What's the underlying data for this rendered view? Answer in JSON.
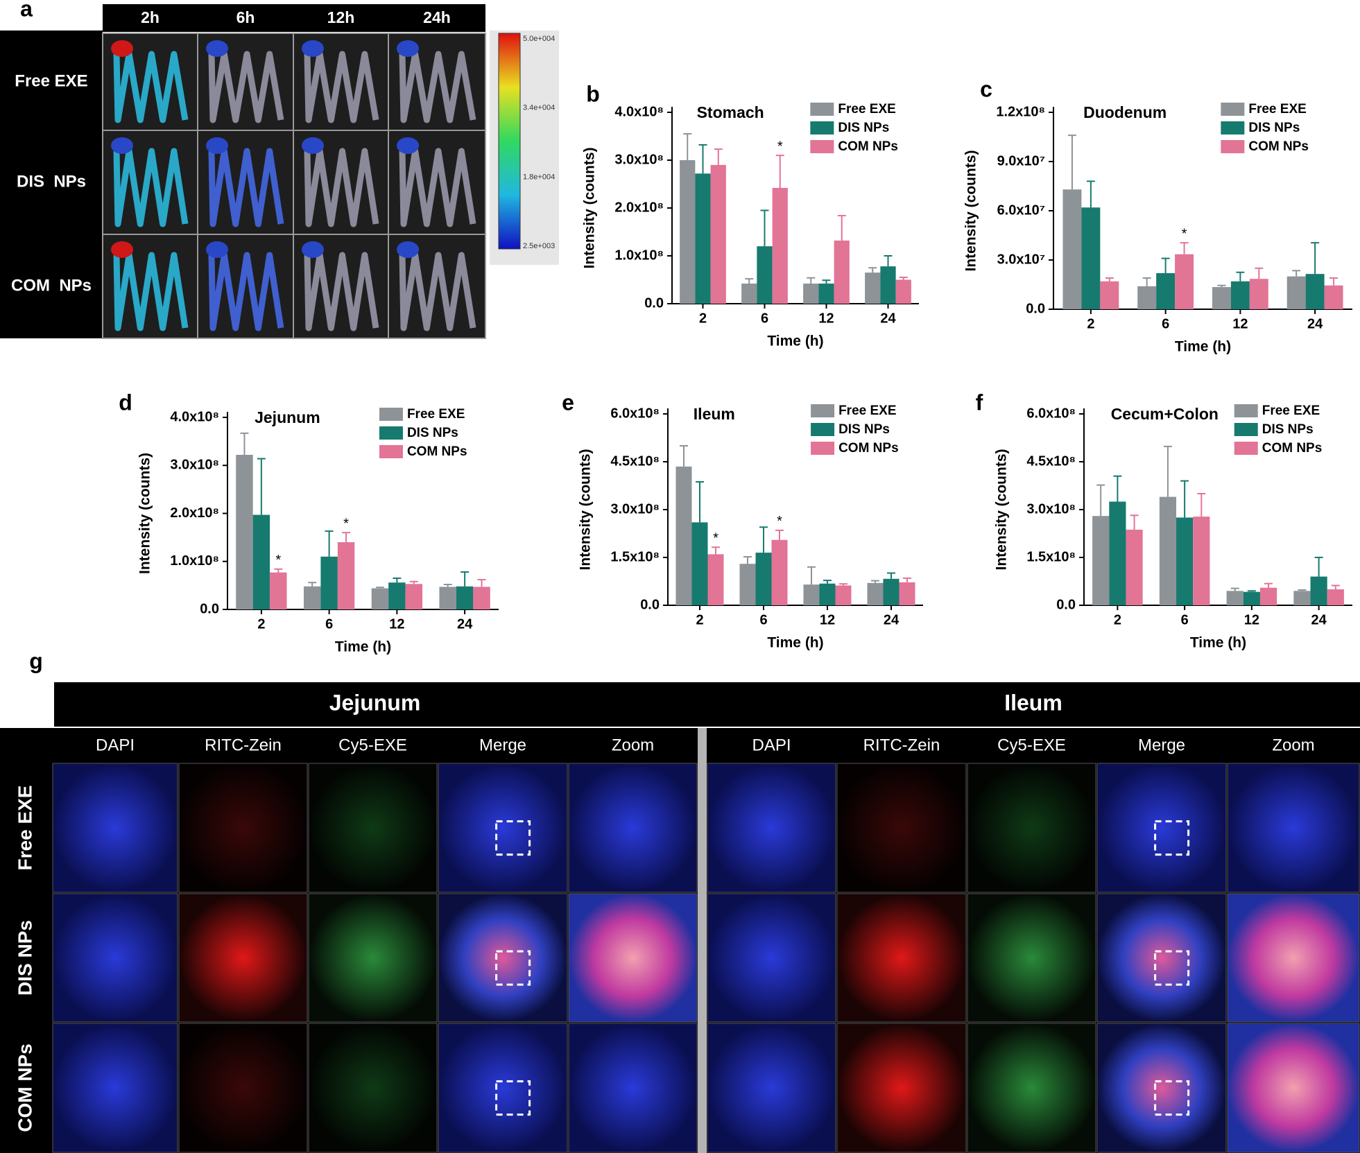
{
  "panel_labels": [
    "a",
    "b",
    "c",
    "d",
    "e",
    "f",
    "g"
  ],
  "panel_a": {
    "times": [
      "2h",
      "6h",
      "12h",
      "24h"
    ],
    "groups": [
      "Free EXE",
      "DIS  NPs",
      "COM  NPs"
    ],
    "colorbar_labels": [
      "5.0e+004",
      "3.4e+004",
      "1.8e+004",
      "2.5e+003"
    ]
  },
  "chart_data": [
    {
      "type": "bar",
      "title": "Stomach",
      "xlabel": "Time (h)",
      "ylabel": "Intensity (counts)",
      "categories": [
        "2",
        "6",
        "12",
        "24"
      ],
      "series": [
        {
          "name": "Free EXE",
          "color": "#8e9398",
          "values": [
            300000000,
            42000000,
            42000000,
            65000000
          ],
          "errors": [
            55000000,
            10000000,
            12000000,
            10000000
          ]
        },
        {
          "name": "DIS NPs",
          "color": "#177a6e",
          "values": [
            272000000,
            120000000,
            42000000,
            78000000
          ],
          "errors": [
            60000000,
            75000000,
            7000000,
            22000000
          ]
        },
        {
          "name": "COM NPs",
          "color": "#e27496",
          "values": [
            290000000,
            242000000,
            132000000,
            50000000
          ],
          "errors": [
            33000000,
            68000000,
            52000000,
            5000000
          ]
        }
      ],
      "ylim": [
        0,
        400000000
      ],
      "yticks": [
        {
          "value": 0,
          "label": "0.0"
        },
        {
          "value": 100000000,
          "label": "1.0x10⁸"
        },
        {
          "value": 200000000,
          "label": "2.0x10⁸"
        },
        {
          "value": 300000000,
          "label": "3.0x10⁸"
        },
        {
          "value": 400000000,
          "label": "4.0x10⁸"
        }
      ],
      "annotations": [
        {
          "text": "*",
          "series": "COM NPs",
          "category": "6"
        }
      ]
    },
    {
      "type": "bar",
      "title": "Duodenum",
      "xlabel": "Time (h)",
      "ylabel": "Intensity (counts)",
      "categories": [
        "2",
        "6",
        "12",
        "24"
      ],
      "series": [
        {
          "name": "Free EXE",
          "color": "#8e9398",
          "values": [
            73000000,
            14000000,
            13500000,
            20000000
          ],
          "errors": [
            33000000,
            5000000,
            1000000,
            3500000
          ]
        },
        {
          "name": "DIS NPs",
          "color": "#177a6e",
          "values": [
            62000000,
            22000000,
            17000000,
            21500000
          ],
          "errors": [
            16000000,
            9000000,
            5500000,
            19000000
          ]
        },
        {
          "name": "COM NPs",
          "color": "#e27496",
          "values": [
            17000000,
            33500000,
            18500000,
            14500000
          ],
          "errors": [
            2000000,
            7000000,
            6500000,
            4500000
          ]
        }
      ],
      "ylim": [
        0,
        120000000
      ],
      "yticks": [
        {
          "value": 0,
          "label": "0.0"
        },
        {
          "value": 30000000,
          "label": "3.0x10⁷"
        },
        {
          "value": 60000000,
          "label": "6.0x10⁷"
        },
        {
          "value": 90000000,
          "label": "9.0x10⁷"
        },
        {
          "value": 120000000,
          "label": "1.2x10⁸"
        }
      ],
      "annotations": [
        {
          "text": "*",
          "series": "COM NPs",
          "category": "6"
        }
      ]
    },
    {
      "type": "bar",
      "title": "Jejunum",
      "xlabel": "Time (h)",
      "ylabel": "Intensity (counts)",
      "categories": [
        "2",
        "6",
        "12",
        "24"
      ],
      "series": [
        {
          "name": "Free EXE",
          "color": "#8e9398",
          "values": [
            322000000,
            48000000,
            44000000,
            47000000
          ],
          "errors": [
            45000000,
            8000000,
            2000000,
            5000000
          ]
        },
        {
          "name": "DIS NPs",
          "color": "#177a6e",
          "values": [
            197000000,
            110000000,
            56000000,
            48000000
          ],
          "errors": [
            117000000,
            53000000,
            9000000,
            30000000
          ]
        },
        {
          "name": "COM NPs",
          "color": "#e27496",
          "values": [
            77000000,
            140000000,
            53000000,
            47000000
          ],
          "errors": [
            7000000,
            20000000,
            5000000,
            15000000
          ]
        }
      ],
      "ylim": [
        0,
        400000000
      ],
      "yticks": [
        {
          "value": 0,
          "label": "0.0"
        },
        {
          "value": 100000000,
          "label": "1.0x10⁸"
        },
        {
          "value": 200000000,
          "label": "2.0x10⁸"
        },
        {
          "value": 300000000,
          "label": "3.0x10⁸"
        },
        {
          "value": 400000000,
          "label": "4.0x10⁸"
        }
      ],
      "annotations": [
        {
          "text": "*",
          "series": "COM NPs",
          "category": "2"
        },
        {
          "text": "*",
          "series": "COM NPs",
          "category": "6"
        }
      ]
    },
    {
      "type": "bar",
      "title": "Ileum",
      "xlabel": "Time (h)",
      "ylabel": "Intensity (counts)",
      "categories": [
        "2",
        "6",
        "12",
        "24"
      ],
      "series": [
        {
          "name": "Free EXE",
          "color": "#8e9398",
          "values": [
            435000000,
            130000000,
            65000000,
            70000000
          ],
          "errors": [
            65000000,
            22000000,
            55000000,
            7000000
          ]
        },
        {
          "name": "DIS NPs",
          "color": "#177a6e",
          "values": [
            260000000,
            165000000,
            68000000,
            83000000
          ],
          "errors": [
            127000000,
            80000000,
            10000000,
            18000000
          ]
        },
        {
          "name": "COM NPs",
          "color": "#e27496",
          "values": [
            160000000,
            205000000,
            62000000,
            72000000
          ],
          "errors": [
            22000000,
            30000000,
            5000000,
            13000000
          ]
        }
      ],
      "ylim": [
        0,
        600000000
      ],
      "yticks": [
        {
          "value": 0,
          "label": "0.0"
        },
        {
          "value": 150000000,
          "label": "1.5x10⁸"
        },
        {
          "value": 300000000,
          "label": "3.0x10⁸"
        },
        {
          "value": 450000000,
          "label": "4.5x10⁸"
        },
        {
          "value": 600000000,
          "label": "6.0x10⁸"
        }
      ],
      "annotations": [
        {
          "text": "*",
          "series": "COM NPs",
          "category": "2"
        },
        {
          "text": "*",
          "series": "COM NPs",
          "category": "6"
        }
      ]
    },
    {
      "type": "bar",
      "title": "Cecum+Colon",
      "xlabel": "Time (h)",
      "ylabel": "Intensity (counts)",
      "categories": [
        "2",
        "6",
        "12",
        "24"
      ],
      "series": [
        {
          "name": "Free EXE",
          "color": "#8e9398",
          "values": [
            280000000,
            340000000,
            45000000,
            45000000
          ],
          "errors": [
            97000000,
            158000000,
            8000000,
            3000000
          ]
        },
        {
          "name": "DIS NPs",
          "color": "#177a6e",
          "values": [
            325000000,
            275000000,
            42000000,
            90000000
          ],
          "errors": [
            80000000,
            115000000,
            3000000,
            60000000
          ]
        },
        {
          "name": "COM NPs",
          "color": "#e27496",
          "values": [
            237000000,
            278000000,
            55000000,
            50000000
          ],
          "errors": [
            45000000,
            72000000,
            13000000,
            12000000
          ]
        }
      ],
      "ylim": [
        0,
        600000000
      ],
      "yticks": [
        {
          "value": 0,
          "label": "0.0"
        },
        {
          "value": 150000000,
          "label": "1.5x10⁸"
        },
        {
          "value": 300000000,
          "label": "3.0x10⁸"
        },
        {
          "value": 450000000,
          "label": "4.5x10⁸"
        },
        {
          "value": 600000000,
          "label": "6.0x10⁸"
        }
      ],
      "annotations": []
    }
  ],
  "panel_g": {
    "regions": [
      "Jejunum",
      "Ileum"
    ],
    "channels": [
      "DAPI",
      "RITC-Zein",
      "Cy5-EXE",
      "Merge",
      "Zoom"
    ],
    "groups": [
      "Free EXE",
      "DIS NPs",
      "COM NPs"
    ]
  }
}
